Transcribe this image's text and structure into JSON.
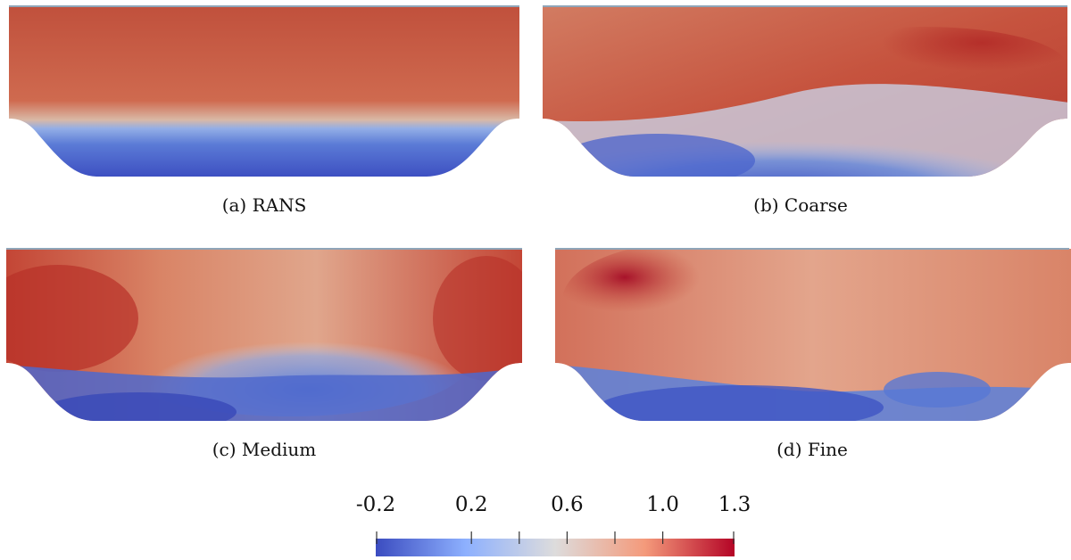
{
  "panels": [
    {
      "id": "a",
      "caption": "(a) RANS"
    },
    {
      "id": "b",
      "caption": "(b) Coarse"
    },
    {
      "id": "c",
      "caption": "(c) Medium"
    },
    {
      "id": "d",
      "caption": "(d) Fine"
    }
  ],
  "colorbar": {
    "min": -0.2,
    "max": 1.3,
    "tick_labels": [
      "-0.2",
      "0.2",
      "0.6",
      "1.0",
      "1.3"
    ],
    "tick_values": [
      -0.2,
      0.2,
      0.6,
      1.0,
      1.3
    ],
    "minor_tick_values": [
      0.4,
      0.8
    ],
    "colors": {
      "low": "#3b4cc0",
      "mid": "#dddcdc",
      "high": "#b40426"
    }
  }
}
